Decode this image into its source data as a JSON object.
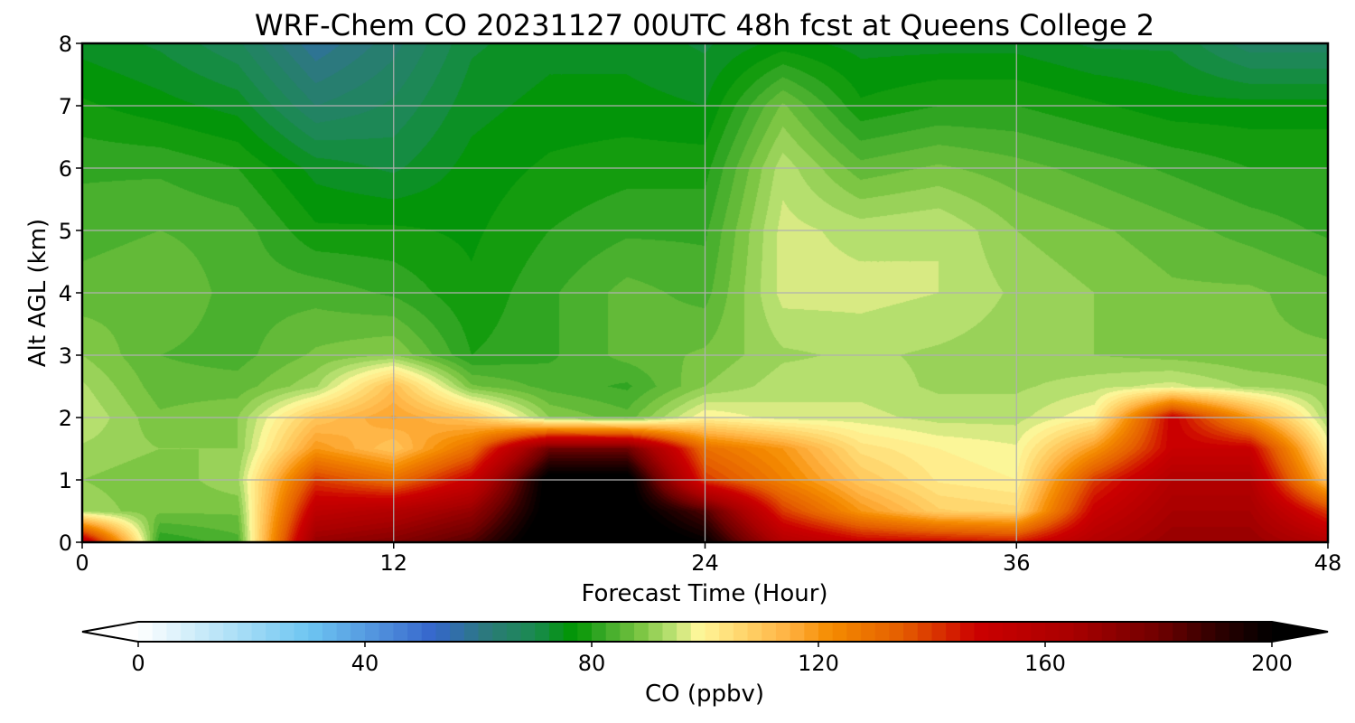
{
  "chart_data": {
    "type": "heatmap",
    "subtype": "filled-contour time-height cross-section",
    "title": "WRF-Chem CO  20231127 00UTC 48h fcst at Queens College 2",
    "xlabel": "Forecast Time (Hour)",
    "ylabel": "Alt AGL (km)",
    "xlim": [
      0,
      48
    ],
    "ylim": [
      0,
      8
    ],
    "xticks": [
      "0",
      "12",
      "24",
      "36",
      "48"
    ],
    "yticks": [
      "0",
      "1",
      "2",
      "3",
      "4",
      "5",
      "6",
      "7",
      "8"
    ],
    "grid": true,
    "x": [
      0,
      3,
      6,
      9,
      12,
      15,
      18,
      21,
      24,
      27,
      30,
      33,
      36,
      39,
      42,
      45,
      48
    ],
    "y": [
      0,
      0.5,
      1,
      1.5,
      2,
      2.5,
      3,
      4,
      5,
      6,
      7,
      8
    ],
    "z": [
      [
        160,
        80,
        84,
        170,
        175,
        185,
        210,
        210,
        200,
        160,
        150,
        148,
        145,
        160,
        170,
        170,
        160
      ],
      [
        92,
        88,
        88,
        155,
        160,
        170,
        205,
        205,
        185,
        140,
        120,
        108,
        106,
        150,
        165,
        165,
        140
      ],
      [
        90,
        88,
        92,
        140,
        130,
        150,
        205,
        205,
        140,
        125,
        110,
        102,
        100,
        140,
        160,
        160,
        110
      ],
      [
        92,
        90,
        90,
        120,
        110,
        130,
        180,
        180,
        130,
        120,
        104,
        100,
        98,
        120,
        150,
        150,
        100
      ],
      [
        95,
        88,
        90,
        110,
        118,
        110,
        90,
        86,
        100,
        96,
        96,
        94,
        94,
        100,
        150,
        120,
        92
      ],
      [
        93,
        86,
        86,
        92,
        112,
        88,
        84,
        82,
        90,
        94,
        94,
        92,
        92,
        94,
        96,
        92,
        90
      ],
      [
        90,
        85,
        84,
        88,
        90,
        80,
        82,
        86,
        88,
        92,
        93,
        92,
        91,
        90,
        89,
        88,
        88
      ],
      [
        86,
        87,
        84,
        84,
        82,
        78,
        82,
        86,
        84,
        96,
        96,
        95,
        92,
        90,
        88,
        88,
        86
      ],
      [
        84,
        85,
        84,
        78,
        78,
        77,
        80,
        82,
        82,
        96,
        94,
        95,
        90,
        88,
        86,
        84,
        82
      ],
      [
        82,
        82,
        80,
        74,
        72,
        76,
        78,
        79,
        79,
        94,
        86,
        88,
        86,
        84,
        82,
        80,
        80
      ],
      [
        78,
        76,
        74,
        65,
        68,
        74,
        76,
        76,
        75,
        88,
        78,
        80,
        80,
        78,
        76,
        76,
        76
      ],
      [
        74,
        72,
        68,
        58,
        64,
        72,
        74,
        74,
        72,
        76,
        74,
        74,
        74,
        72,
        72,
        66,
        66
      ]
    ],
    "colorbar": {
      "label": "CO  (ppbv)",
      "min": 0,
      "max": 200,
      "step": 2.5,
      "ticks": [
        "0",
        "40",
        "80",
        "120",
        "160",
        "200"
      ],
      "extend": "both",
      "colors": [
        [
          0,
          "#ffffff"
        ],
        [
          15,
          "#b6e3f7"
        ],
        [
          30,
          "#6ec6f2"
        ],
        [
          45,
          "#4a86d8"
        ],
        [
          52,
          "#3566cc"
        ],
        [
          62,
          "#2b7a78"
        ],
        [
          70,
          "#1a8a50"
        ],
        [
          77,
          "#009600"
        ],
        [
          82,
          "#38a828"
        ],
        [
          88,
          "#74c23e"
        ],
        [
          94,
          "#b8e070"
        ],
        [
          99,
          "#fff79a"
        ],
        [
          106,
          "#ffd870"
        ],
        [
          115,
          "#ffb040"
        ],
        [
          122,
          "#f58c00"
        ],
        [
          135,
          "#e45c00"
        ],
        [
          148,
          "#cc0000"
        ],
        [
          165,
          "#a80000"
        ],
        [
          180,
          "#700000"
        ],
        [
          190,
          "#300000"
        ],
        [
          200,
          "#000000"
        ]
      ]
    }
  }
}
